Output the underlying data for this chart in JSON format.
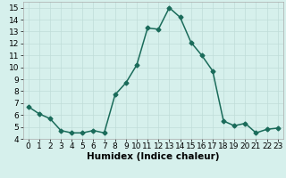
{
  "x": [
    0,
    1,
    2,
    3,
    4,
    5,
    6,
    7,
    8,
    9,
    10,
    11,
    12,
    13,
    14,
    15,
    16,
    17,
    18,
    19,
    20,
    21,
    22,
    23
  ],
  "y": [
    6.7,
    6.1,
    5.7,
    4.7,
    4.5,
    4.5,
    4.7,
    4.5,
    7.7,
    8.7,
    10.2,
    13.3,
    13.2,
    15.0,
    14.2,
    12.1,
    11.0,
    9.7,
    5.5,
    5.1,
    5.3,
    4.5,
    4.8,
    4.9
  ],
  "line_color": "#1a6b5a",
  "marker": "D",
  "marker_size": 2.5,
  "bg_color": "#d6f0ec",
  "grid_color": "#c0ddd8",
  "xlabel": "Humidex (Indice chaleur)",
  "ylim": [
    4,
    15.5
  ],
  "xlim": [
    -0.5,
    23.5
  ],
  "yticks": [
    4,
    5,
    6,
    7,
    8,
    9,
    10,
    11,
    12,
    13,
    14,
    15
  ],
  "xticks": [
    0,
    1,
    2,
    3,
    4,
    5,
    6,
    7,
    8,
    9,
    10,
    11,
    12,
    13,
    14,
    15,
    16,
    17,
    18,
    19,
    20,
    21,
    22,
    23
  ],
  "tick_label_fontsize": 6.5,
  "xlabel_fontsize": 7.5,
  "line_width": 1.1
}
